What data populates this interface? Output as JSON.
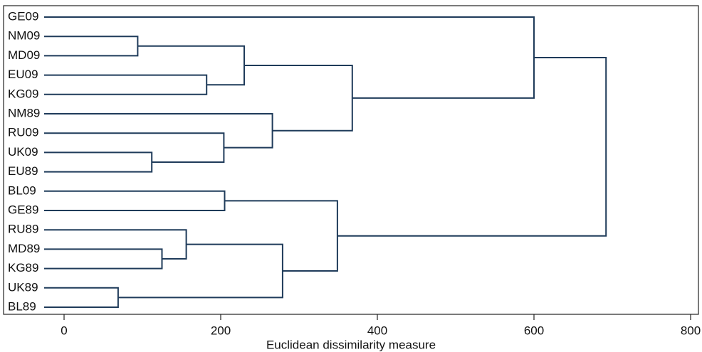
{
  "chart_data": {
    "type": "dendrogram",
    "x_label": "Euclidean dissimilarity measure",
    "leaves": [
      "GE09",
      "NM09",
      "MD09",
      "EU09",
      "KG09",
      "NM89",
      "RU09",
      "UK09",
      "EU89",
      "BL09",
      "GE89",
      "RU89",
      "MD89",
      "KG89",
      "UK89",
      "BL89"
    ],
    "merges": [
      {
        "children": [
          1,
          2
        ],
        "height": 94
      },
      {
        "children": [
          3,
          4
        ],
        "height": 182
      },
      {
        "children": [
          16,
          17
        ],
        "height": 230
      },
      {
        "children": [
          7,
          8
        ],
        "height": 112
      },
      {
        "children": [
          6,
          19
        ],
        "height": 204
      },
      {
        "children": [
          5,
          20
        ],
        "height": 266
      },
      {
        "children": [
          18,
          21
        ],
        "height": 368
      },
      {
        "children": [
          0,
          22
        ],
        "height": 600
      },
      {
        "children": [
          9,
          10
        ],
        "height": 205
      },
      {
        "children": [
          12,
          13
        ],
        "height": 125
      },
      {
        "children": [
          11,
          25
        ],
        "height": 156
      },
      {
        "children": [
          14,
          15
        ],
        "height": 69
      },
      {
        "children": [
          26,
          27
        ],
        "height": 279
      },
      {
        "children": [
          24,
          28
        ],
        "height": 349
      },
      {
        "children": [
          23,
          29
        ],
        "height": 692
      }
    ],
    "color": "#1f3b5a",
    "xlim": [
      0,
      810
    ],
    "xticks": [
      0,
      200,
      400,
      600,
      800
    ]
  }
}
